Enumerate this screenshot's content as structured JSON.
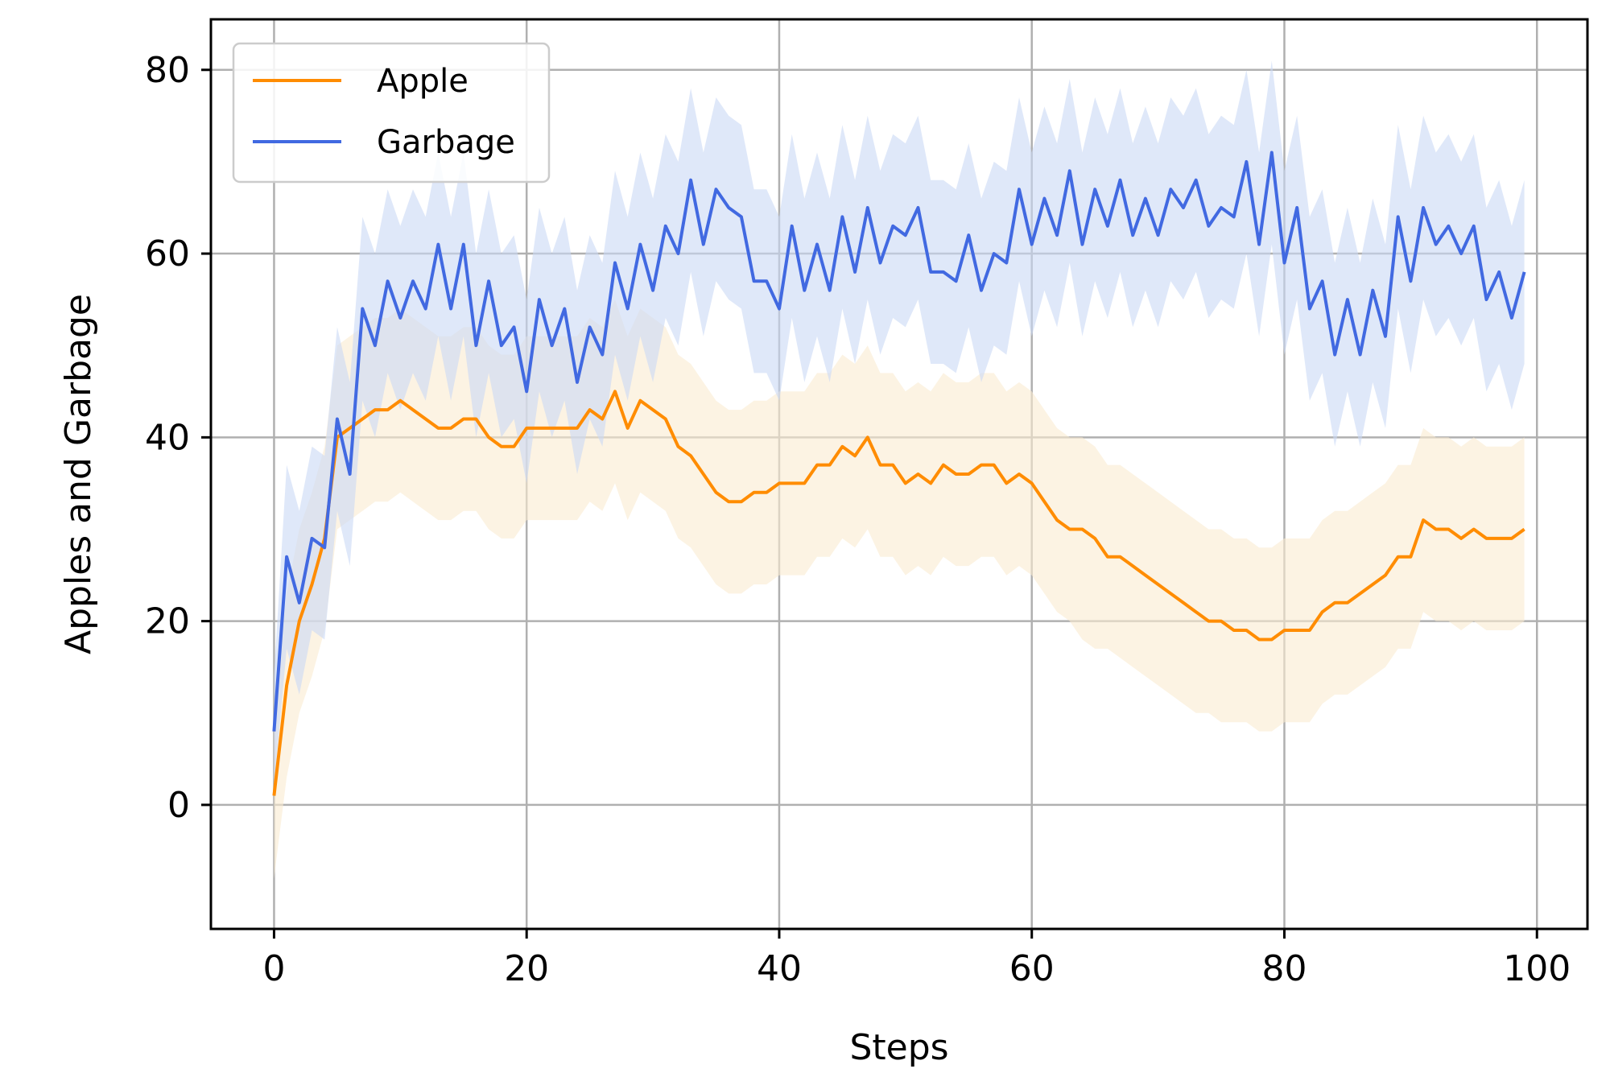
{
  "chart_data": {
    "type": "line",
    "xlabel": "Steps",
    "ylabel": "Apples and Garbage",
    "xlim": [
      -5,
      104
    ],
    "ylim": [
      -13.5,
      85.5
    ],
    "xticks": [
      0,
      20,
      40,
      60,
      80,
      100
    ],
    "yticks": [
      0,
      20,
      40,
      60,
      80
    ],
    "grid": true,
    "legend_position": "top-left",
    "series": [
      {
        "name": "Apple",
        "color": "#ff8c00",
        "band_color": "#faebd0",
        "x": [
          0,
          1,
          2,
          3,
          4,
          5,
          6,
          7,
          8,
          9,
          10,
          11,
          12,
          13,
          14,
          15,
          16,
          17,
          18,
          19,
          20,
          21,
          22,
          23,
          24,
          25,
          26,
          27,
          28,
          29,
          30,
          31,
          32,
          33,
          34,
          35,
          36,
          37,
          38,
          39,
          40,
          41,
          42,
          43,
          44,
          45,
          46,
          47,
          48,
          49,
          50,
          51,
          52,
          53,
          54,
          55,
          56,
          57,
          58,
          59,
          60,
          61,
          62,
          63,
          64,
          65,
          66,
          67,
          68,
          69,
          70,
          71,
          72,
          73,
          74,
          75,
          76,
          77,
          78,
          79,
          80,
          81,
          82,
          83,
          84,
          85,
          86,
          87,
          88,
          89,
          90,
          91,
          92,
          93,
          94,
          95,
          96,
          97,
          98,
          99
        ],
        "values": [
          1,
          13,
          20,
          24,
          29,
          40,
          41,
          42,
          43,
          43,
          44,
          43,
          42,
          41,
          41,
          42,
          42,
          40,
          39,
          39,
          41,
          41,
          41,
          41,
          41,
          43,
          42,
          45,
          41,
          44,
          43,
          42,
          39,
          38,
          36,
          34,
          33,
          33,
          34,
          34,
          35,
          35,
          35,
          37,
          37,
          39,
          38,
          40,
          37,
          37,
          35,
          36,
          35,
          37,
          36,
          36,
          37,
          37,
          35,
          36,
          35,
          33,
          31,
          30,
          30,
          29,
          27,
          27,
          26,
          25,
          24,
          23,
          22,
          21,
          20,
          20,
          19,
          19,
          18,
          18,
          19,
          19,
          19,
          21,
          22,
          22,
          23,
          24,
          25,
          27,
          27,
          31,
          30,
          30,
          29,
          30,
          29,
          29,
          29,
          30
        ],
        "lower": [
          -8,
          3,
          10,
          14,
          19,
          30,
          31,
          32,
          33,
          33,
          34,
          33,
          32,
          31,
          31,
          32,
          32,
          30,
          29,
          29,
          31,
          31,
          31,
          31,
          31,
          33,
          32,
          35,
          31,
          34,
          33,
          32,
          29,
          28,
          26,
          24,
          23,
          23,
          24,
          24,
          25,
          25,
          25,
          27,
          27,
          29,
          28,
          30,
          27,
          27,
          25,
          26,
          25,
          27,
          26,
          26,
          27,
          27,
          25,
          26,
          25,
          23,
          21,
          20,
          18,
          17,
          17,
          16,
          15,
          14,
          13,
          12,
          11,
          10,
          10,
          9,
          9,
          9,
          8,
          8,
          9,
          9,
          9,
          11,
          12,
          12,
          13,
          14,
          15,
          17,
          17,
          21,
          20,
          20,
          19,
          20,
          19,
          19,
          19,
          20
        ],
        "upper": [
          10,
          23,
          30,
          34,
          39,
          50,
          51,
          52,
          53,
          53,
          54,
          53,
          52,
          51,
          51,
          52,
          52,
          50,
          49,
          49,
          51,
          51,
          51,
          51,
          51,
          53,
          52,
          55,
          51,
          54,
          53,
          52,
          49,
          48,
          46,
          44,
          43,
          43,
          44,
          44,
          45,
          45,
          45,
          47,
          47,
          49,
          48,
          50,
          47,
          47,
          45,
          46,
          45,
          47,
          46,
          46,
          47,
          47,
          45,
          46,
          45,
          43,
          41,
          40,
          40,
          39,
          37,
          37,
          36,
          35,
          34,
          33,
          32,
          31,
          30,
          30,
          29,
          29,
          28,
          28,
          29,
          29,
          29,
          31,
          32,
          32,
          33,
          34,
          35,
          37,
          37,
          41,
          40,
          40,
          39,
          40,
          39,
          39,
          39,
          40
        ]
      },
      {
        "name": "Garbage",
        "color": "#4169e1",
        "band_color": "#c9d9f5",
        "x": [
          0,
          1,
          2,
          3,
          4,
          5,
          6,
          7,
          8,
          9,
          10,
          11,
          12,
          13,
          14,
          15,
          16,
          17,
          18,
          19,
          20,
          21,
          22,
          23,
          24,
          25,
          26,
          27,
          28,
          29,
          30,
          31,
          32,
          33,
          34,
          35,
          36,
          37,
          38,
          39,
          40,
          41,
          42,
          43,
          44,
          45,
          46,
          47,
          48,
          49,
          50,
          51,
          52,
          53,
          54,
          55,
          56,
          57,
          58,
          59,
          60,
          61,
          62,
          63,
          64,
          65,
          66,
          67,
          68,
          69,
          70,
          71,
          72,
          73,
          74,
          75,
          76,
          77,
          78,
          79,
          80,
          81,
          82,
          83,
          84,
          85,
          86,
          87,
          88,
          89,
          90,
          91,
          92,
          93,
          94,
          95,
          96,
          97,
          98,
          99
        ],
        "values": [
          8,
          27,
          22,
          29,
          28,
          42,
          36,
          54,
          50,
          57,
          53,
          57,
          54,
          61,
          54,
          61,
          50,
          57,
          50,
          52,
          45,
          55,
          50,
          54,
          46,
          52,
          49,
          59,
          54,
          61,
          56,
          63,
          60,
          68,
          61,
          67,
          65,
          64,
          57,
          57,
          54,
          63,
          56,
          61,
          56,
          64,
          58,
          65,
          59,
          63,
          62,
          65,
          58,
          58,
          57,
          62,
          56,
          60,
          59,
          67,
          61,
          66,
          62,
          69,
          61,
          67,
          63,
          68,
          62,
          66,
          62,
          67,
          65,
          68,
          63,
          65,
          64,
          70,
          61,
          71,
          59,
          65,
          54,
          57,
          49,
          55,
          49,
          56,
          51,
          64,
          57,
          65,
          61,
          63,
          60,
          63,
          55,
          58,
          53,
          58
        ],
        "lower": [
          2,
          17,
          12,
          19,
          18,
          32,
          26,
          44,
          40,
          47,
          43,
          47,
          44,
          51,
          44,
          51,
          40,
          47,
          40,
          42,
          35,
          45,
          40,
          44,
          36,
          42,
          39,
          49,
          44,
          51,
          46,
          53,
          50,
          58,
          51,
          57,
          55,
          54,
          47,
          47,
          44,
          53,
          46,
          51,
          46,
          54,
          48,
          55,
          49,
          53,
          52,
          55,
          48,
          48,
          47,
          52,
          46,
          50,
          49,
          57,
          51,
          56,
          52,
          59,
          51,
          57,
          53,
          58,
          52,
          56,
          52,
          57,
          55,
          58,
          53,
          55,
          54,
          60,
          51,
          61,
          49,
          55,
          44,
          47,
          39,
          45,
          39,
          46,
          41,
          54,
          47,
          55,
          51,
          53,
          50,
          53,
          45,
          48,
          43,
          48
        ],
        "upper": [
          14,
          37,
          32,
          39,
          38,
          52,
          46,
          64,
          60,
          67,
          63,
          67,
          64,
          71,
          64,
          71,
          60,
          67,
          60,
          62,
          55,
          65,
          60,
          64,
          56,
          62,
          59,
          69,
          64,
          71,
          66,
          73,
          70,
          78,
          71,
          77,
          75,
          74,
          67,
          67,
          64,
          73,
          66,
          71,
          66,
          74,
          68,
          75,
          69,
          73,
          72,
          75,
          68,
          68,
          67,
          72,
          66,
          70,
          69,
          77,
          71,
          76,
          72,
          79,
          71,
          77,
          73,
          78,
          72,
          76,
          72,
          77,
          75,
          78,
          73,
          75,
          74,
          80,
          71,
          81,
          69,
          75,
          64,
          67,
          59,
          65,
          59,
          66,
          61,
          74,
          67,
          75,
          71,
          73,
          70,
          73,
          65,
          68,
          63,
          68
        ]
      }
    ]
  }
}
